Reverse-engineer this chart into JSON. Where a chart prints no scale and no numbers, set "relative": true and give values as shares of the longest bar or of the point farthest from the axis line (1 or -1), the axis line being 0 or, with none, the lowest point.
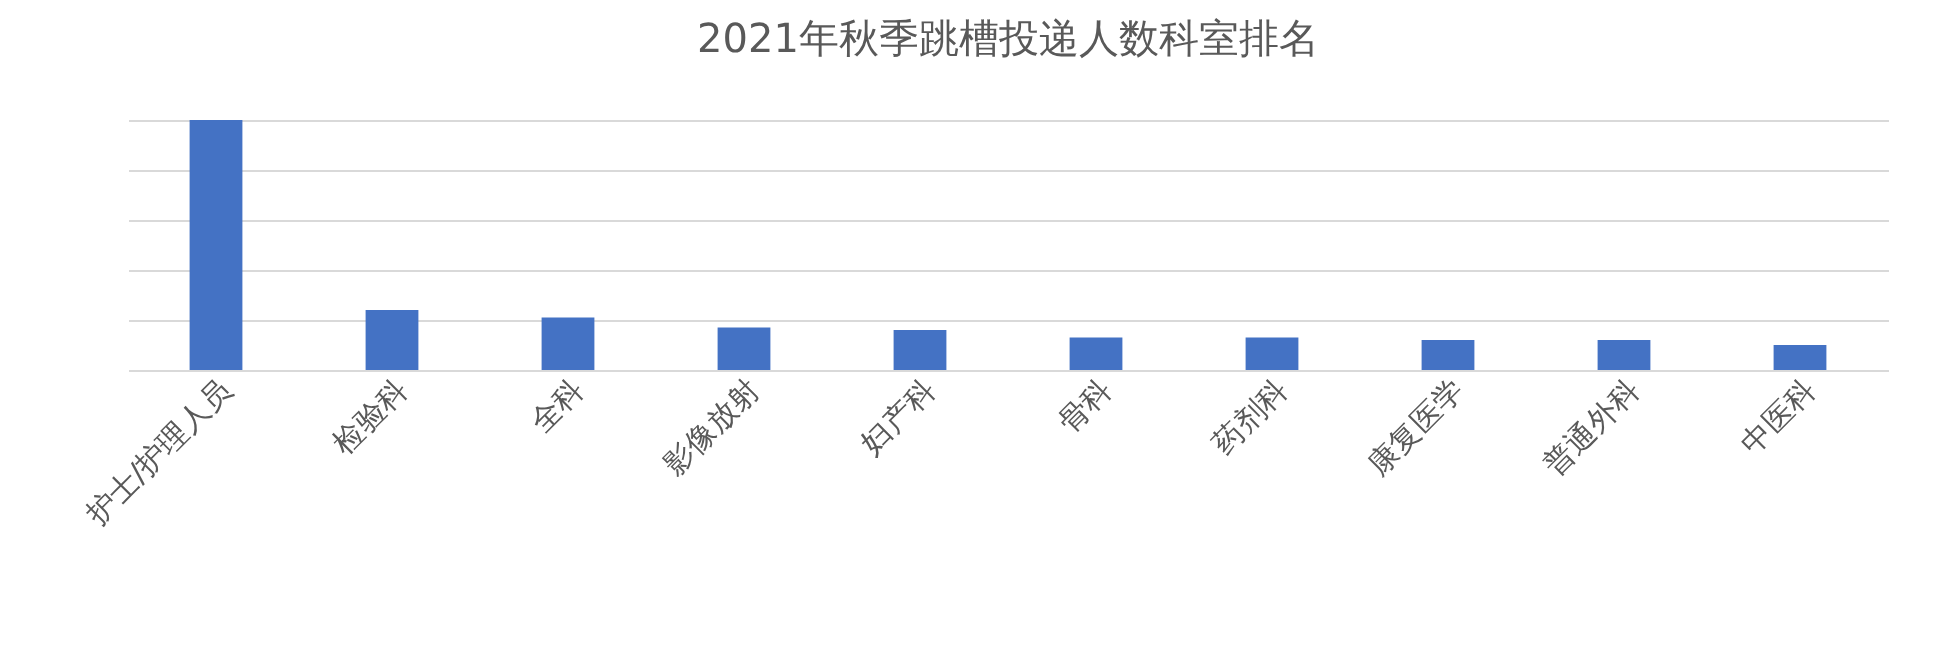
{
  "chart_data": {
    "type": "bar",
    "title": "2021年秋季跳槽投递人数科室排名",
    "relative": true,
    "grid": "y",
    "categories": [
      "护士/护理人员",
      "检验科",
      "全科",
      "影像放射",
      "妇产科",
      "骨科",
      "药剂科",
      "康复医学",
      "普通外科",
      "中医科"
    ],
    "values": [
      1,
      0.24,
      0.21,
      0.17,
      0.16,
      0.13,
      0.13,
      0.12,
      0.12,
      0.1
    ],
    "color": "#4472c4"
  }
}
